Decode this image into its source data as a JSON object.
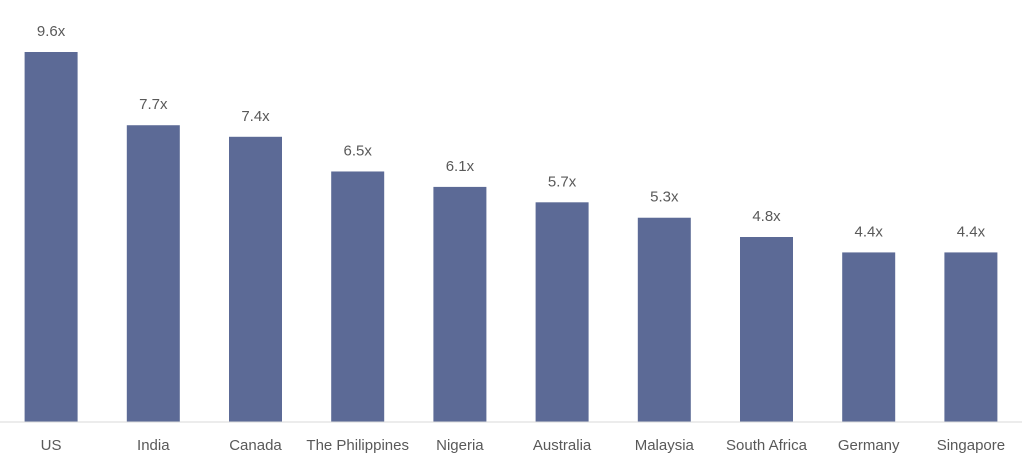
{
  "chart_data": {
    "type": "bar",
    "color": "#5c6a96",
    "categories": [
      "US",
      "India",
      "Canada",
      "The Philippines",
      "Nigeria",
      "Australia",
      "Malaysia",
      "South Africa",
      "Germany",
      "Singapore"
    ],
    "values": [
      9.6,
      7.7,
      7.4,
      6.5,
      6.1,
      5.7,
      5.3,
      4.8,
      4.4,
      4.4
    ],
    "value_labels": [
      "9.6x",
      "7.7x",
      "7.4x",
      "6.5x",
      "6.1x",
      "5.7x",
      "5.3x",
      "4.8x",
      "4.4x",
      "4.4x"
    ]
  }
}
